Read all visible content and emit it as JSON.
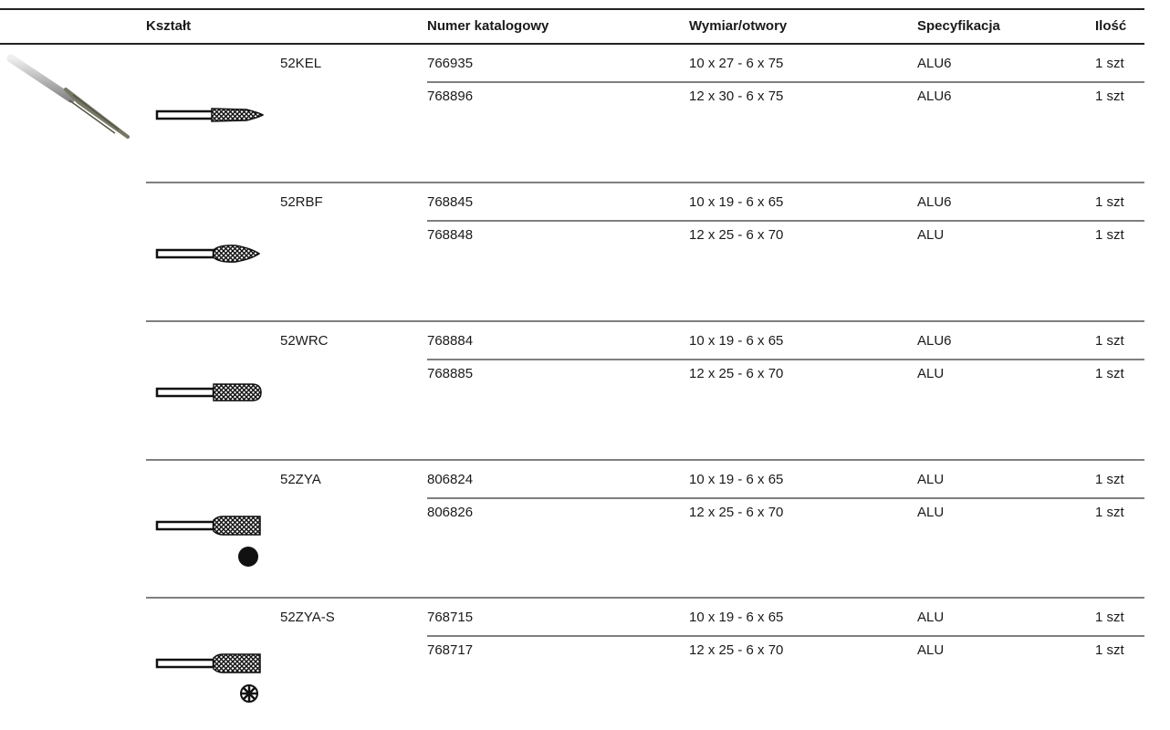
{
  "header": {
    "columns": [
      "Kształt",
      "Numer katalogowy",
      "Wymiar/otwory",
      "Specyfikacja",
      "Ilość"
    ]
  },
  "groups": [
    {
      "code": "52KEL",
      "rows": [
        [
          "766935",
          "10 x 27 - 6 x 75",
          "ALU6",
          "1 szt"
        ],
        [
          "768896",
          "12 x 30 - 6 x 75",
          "ALU6",
          "1 szt"
        ]
      ]
    },
    {
      "code": "52RBF",
      "rows": [
        [
          "768845",
          "10 x 19 - 6 x 65",
          "ALU6",
          "1 szt"
        ],
        [
          "768848",
          "12 x 25 - 6 x 70",
          "ALU",
          "1 szt"
        ]
      ]
    },
    {
      "code": "52WRC",
      "rows": [
        [
          "768884",
          "10 x 19 - 6 x 65",
          "ALU6",
          "1 szt"
        ],
        [
          "768885",
          "12 x 25 - 6 x 70",
          "ALU",
          "1 szt"
        ]
      ]
    },
    {
      "code": "52ZYA",
      "rows": [
        [
          "806824",
          "10 x 19 - 6 x 65",
          "ALU",
          "1 szt"
        ],
        [
          "806826",
          "12 x 25 - 6 x 70",
          "ALU",
          "1 szt"
        ]
      ]
    },
    {
      "code": "52ZYA-S",
      "rows": [
        [
          "768715",
          "10 x 19 - 6 x 65",
          "ALU",
          "1 szt"
        ],
        [
          "768717",
          "12 x 25 - 6 x 70",
          "ALU",
          "1 szt"
        ]
      ]
    }
  ]
}
